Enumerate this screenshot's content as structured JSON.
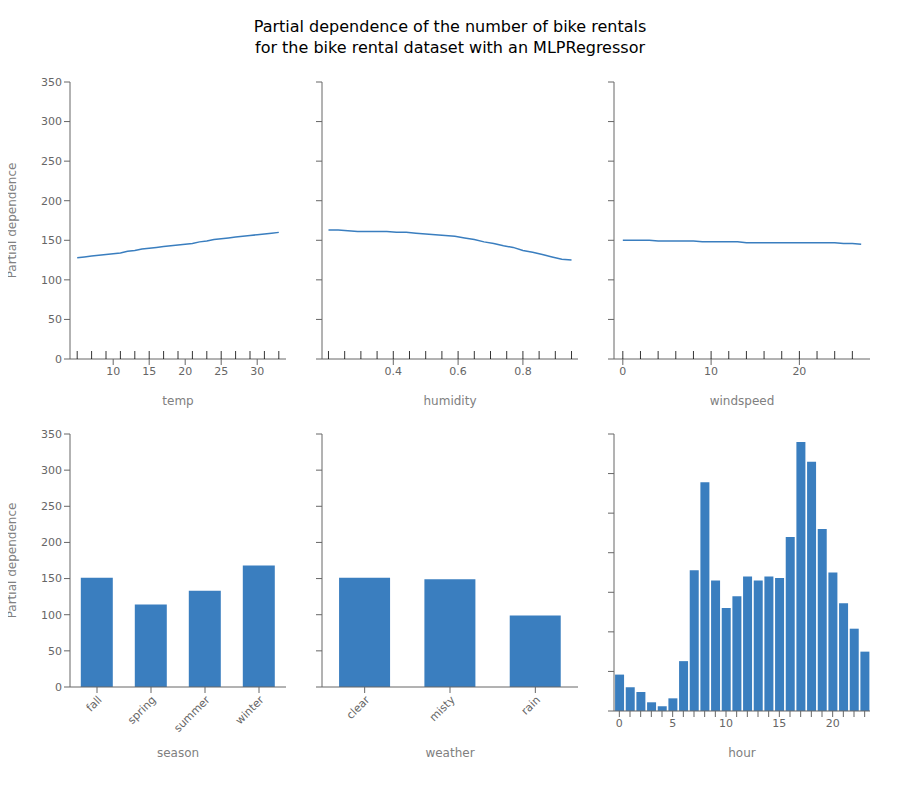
{
  "title": "Partial dependence of the number of bike rentals\nfor the bike rental dataset with an MLPRegressor",
  "chart_data": [
    {
      "type": "line",
      "x": [
        5,
        6,
        7,
        8,
        9,
        10,
        11,
        12,
        13,
        14,
        15,
        16,
        17,
        18,
        19,
        20,
        21,
        22,
        23,
        24,
        25,
        26,
        27,
        28,
        29,
        30,
        31,
        32,
        33
      ],
      "values": [
        128,
        129,
        130,
        131,
        132,
        133,
        134,
        136,
        137,
        139,
        140,
        141,
        142,
        143,
        144,
        145,
        146,
        148,
        149,
        151,
        152,
        153,
        154,
        155,
        156,
        157,
        158,
        159,
        160
      ],
      "rug": [
        5,
        7,
        9,
        11,
        13,
        15,
        17,
        19,
        21,
        23,
        25,
        27,
        29,
        31,
        33
      ],
      "xlabel": "temp",
      "ylabel": "Partial dependence",
      "xlim": [
        4,
        34
      ],
      "xticks": [
        10,
        15,
        20,
        25,
        30
      ],
      "ylim": [
        0,
        350
      ],
      "yticks": [
        0,
        50,
        100,
        150,
        200,
        250,
        300,
        350
      ],
      "color": "#3a7ebf",
      "grid": false
    },
    {
      "type": "line",
      "x": [
        0.2,
        0.23,
        0.26,
        0.29,
        0.32,
        0.35,
        0.38,
        0.41,
        0.44,
        0.47,
        0.5,
        0.53,
        0.56,
        0.59,
        0.62,
        0.65,
        0.68,
        0.71,
        0.74,
        0.77,
        0.8,
        0.83,
        0.86,
        0.89,
        0.92,
        0.95
      ],
      "values": [
        163,
        163,
        162,
        161,
        161,
        161,
        161,
        160,
        160,
        159,
        158,
        157,
        156,
        155,
        153,
        151,
        148,
        146,
        143,
        141,
        137,
        135,
        132,
        129,
        126,
        125
      ],
      "rug": [
        0.2,
        0.25,
        0.3,
        0.35,
        0.4,
        0.45,
        0.5,
        0.55,
        0.6,
        0.65,
        0.7,
        0.75,
        0.8,
        0.85,
        0.9,
        0.95
      ],
      "xlabel": "humidity",
      "xlim": [
        0.18,
        0.97
      ],
      "xticks": [
        0.4,
        0.6,
        0.8
      ],
      "ylim": [
        0,
        350
      ],
      "yticks": [
        0,
        50,
        100,
        150,
        200,
        250,
        300,
        350
      ],
      "color": "#3a7ebf",
      "grid": false,
      "tick_labels": "x"
    },
    {
      "type": "line",
      "x": [
        0,
        1,
        2,
        3,
        4,
        5,
        6,
        7,
        8,
        9,
        10,
        11,
        12,
        13,
        14,
        15,
        16,
        17,
        18,
        19,
        20,
        21,
        22,
        23,
        24,
        25,
        26,
        27
      ],
      "values": [
        150,
        150,
        150,
        150,
        149,
        149,
        149,
        149,
        149,
        148,
        148,
        148,
        148,
        148,
        147,
        147,
        147,
        147,
        147,
        147,
        147,
        147,
        147,
        147,
        147,
        146,
        146,
        145
      ],
      "rug": [
        0,
        2,
        4,
        6,
        8,
        10,
        12,
        14,
        16,
        18,
        20,
        22,
        24,
        26
      ],
      "xlabel": "windspeed",
      "xlim": [
        -1,
        28
      ],
      "xticks": [
        0,
        10,
        20
      ],
      "ylim": [
        0,
        350
      ],
      "yticks": [
        0,
        50,
        100,
        150,
        200,
        250,
        300,
        350
      ],
      "color": "#3a7ebf",
      "grid": false,
      "tick_labels": "x"
    },
    {
      "type": "bar",
      "categories": [
        "fall",
        "spring",
        "summer",
        "winter"
      ],
      "values": [
        151,
        114,
        133,
        168
      ],
      "xlabel": "season",
      "ylabel": "Partial dependence",
      "ylim": [
        0,
        350
      ],
      "yticks": [
        0,
        50,
        100,
        150,
        200,
        250,
        300,
        350
      ],
      "color": "#3a7ebf",
      "grid": false
    },
    {
      "type": "bar",
      "categories": [
        "clear",
        "misty",
        "rain"
      ],
      "values": [
        151,
        149,
        99
      ],
      "xlabel": "weather",
      "ylim": [
        0,
        350
      ],
      "yticks": [
        0,
        50,
        100,
        150,
        200,
        250,
        300,
        350
      ],
      "color": "#3a7ebf",
      "grid": false,
      "tick_labels": "x"
    },
    {
      "type": "bar",
      "categories": [
        0,
        1,
        2,
        3,
        4,
        5,
        6,
        7,
        8,
        9,
        10,
        11,
        12,
        13,
        14,
        15,
        16,
        17,
        18,
        19,
        20,
        21,
        22,
        23
      ],
      "values": [
        46,
        30,
        24,
        11,
        6,
        16,
        63,
        178,
        289,
        165,
        130,
        145,
        170,
        165,
        170,
        168,
        220,
        340,
        315,
        230,
        175,
        136,
        104,
        75
      ],
      "xlabel": "hour",
      "xticks": [
        0,
        5,
        10,
        15,
        20
      ],
      "ylim": [
        0,
        350
      ],
      "yticks": [
        0,
        50,
        100,
        150,
        200,
        250,
        300,
        350
      ],
      "color": "#3a7ebf",
      "grid": false,
      "tick_labels": "x"
    }
  ]
}
